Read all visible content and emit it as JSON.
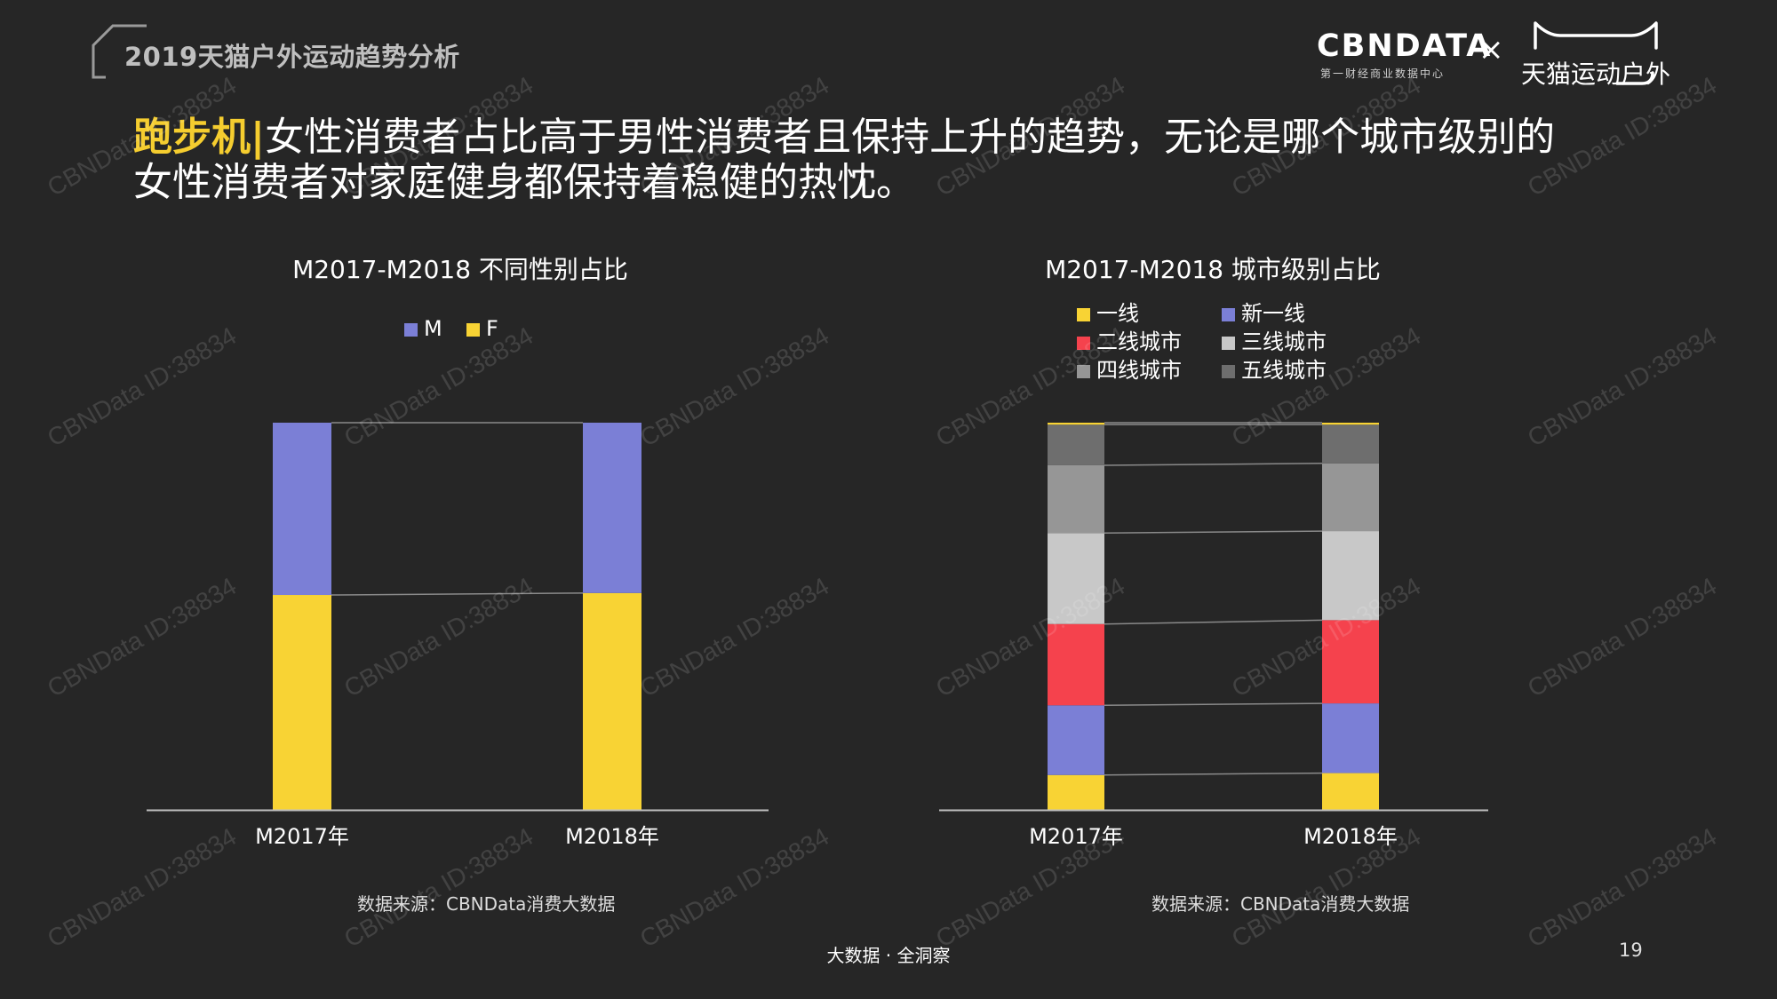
{
  "header": {
    "report_title": "2019天猫户外运动趋势分析",
    "logo_cbndata": "CBNDATA",
    "logo_cbndata_tagline": "第一财经商业数据中心",
    "logo_separator": "×",
    "logo_tmall": "天猫运动户外"
  },
  "headline": {
    "keyword": "跑步机",
    "separator": "|",
    "line1": "女性消费者占比高于男性消费者且保持上升的趋势，无论是哪个城市级别的",
    "line2": "女性消费者对家庭健身都保持着稳健的热忱。"
  },
  "colors": {
    "background": "#262626",
    "accent_yellow": "#f5cd2f",
    "M": "#7b7fd6",
    "F": "#f8d334",
    "tier1": "#f8d334",
    "new_tier1": "#7b7fd6",
    "tier2": "#f5424d",
    "tier3": "#c8c8c8",
    "tier4": "#969696",
    "tier5": "#6e6e6e"
  },
  "chart_data": [
    {
      "type": "bar",
      "stacked": true,
      "percent": true,
      "title": "M2017-M2018 不同性别占比",
      "categories": [
        "M2017年",
        "M2018年"
      ],
      "series": [
        {
          "name": "F",
          "color": "#f8d334",
          "values": [
            55.5,
            56.0
          ]
        },
        {
          "name": "M",
          "color": "#7b7fd6",
          "values": [
            44.5,
            44.0
          ]
        }
      ],
      "legend_order": [
        "M",
        "F"
      ],
      "legend_position": "top-center",
      "ylim": [
        0,
        100
      ],
      "grid": false,
      "source": "数据来源：CBNData消费大数据"
    },
    {
      "type": "bar",
      "stacked": true,
      "percent": true,
      "title": "M2017-M2018 城市级别占比",
      "categories": [
        "M2017年",
        "M2018年"
      ],
      "series": [
        {
          "name": "一线",
          "color": "#f8d334",
          "values": [
            9.0,
            9.5
          ]
        },
        {
          "name": "新一线",
          "color": "#7b7fd6",
          "values": [
            18.0,
            18.0
          ]
        },
        {
          "name": "二线城市",
          "color": "#f5424d",
          "values": [
            21.0,
            21.5
          ]
        },
        {
          "name": "三线城市",
          "color": "#c8c8c8",
          "values": [
            23.5,
            23.0
          ]
        },
        {
          "name": "四线城市",
          "color": "#969696",
          "values": [
            17.5,
            17.5
          ]
        },
        {
          "name": "五线城市",
          "color": "#6e6e6e",
          "values": [
            10.5,
            10.0
          ]
        },
        {
          "name": "",
          "color": "#f8d334",
          "values": [
            0.5,
            0.5
          ]
        }
      ],
      "legend_order": [
        "一线",
        "新一线",
        "二线城市",
        "三线城市",
        "四线城市",
        "五线城市"
      ],
      "legend_position": "top-center",
      "ylim": [
        0,
        100
      ],
      "grid": false,
      "source": "数据来源：CBNData消费大数据"
    }
  ],
  "footer": {
    "slogan": "大数据 · 全洞察",
    "page_number": "19"
  },
  "watermark": "CBNData ID:38834"
}
